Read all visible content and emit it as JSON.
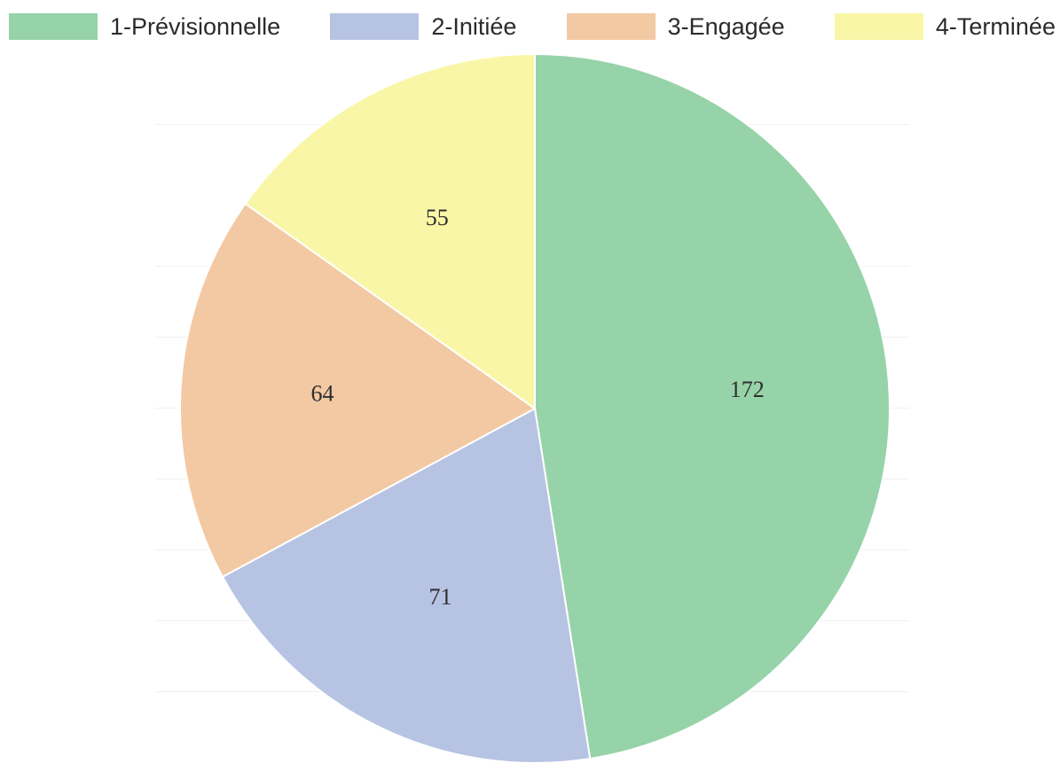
{
  "chart_data": {
    "type": "pie",
    "categories": [
      "1-Prévisionnelle",
      "2-Initiée",
      "3-Engagée",
      "4-Terminée"
    ],
    "values": [
      172,
      71,
      64,
      55
    ],
    "colors": [
      "#96d3a8",
      "#b7c3e2",
      "#f2c9a3",
      "#f9f7a7"
    ],
    "legend_position": "top",
    "data_labels": true,
    "start_angle": "12 o'clock",
    "direction": "clockwise"
  }
}
